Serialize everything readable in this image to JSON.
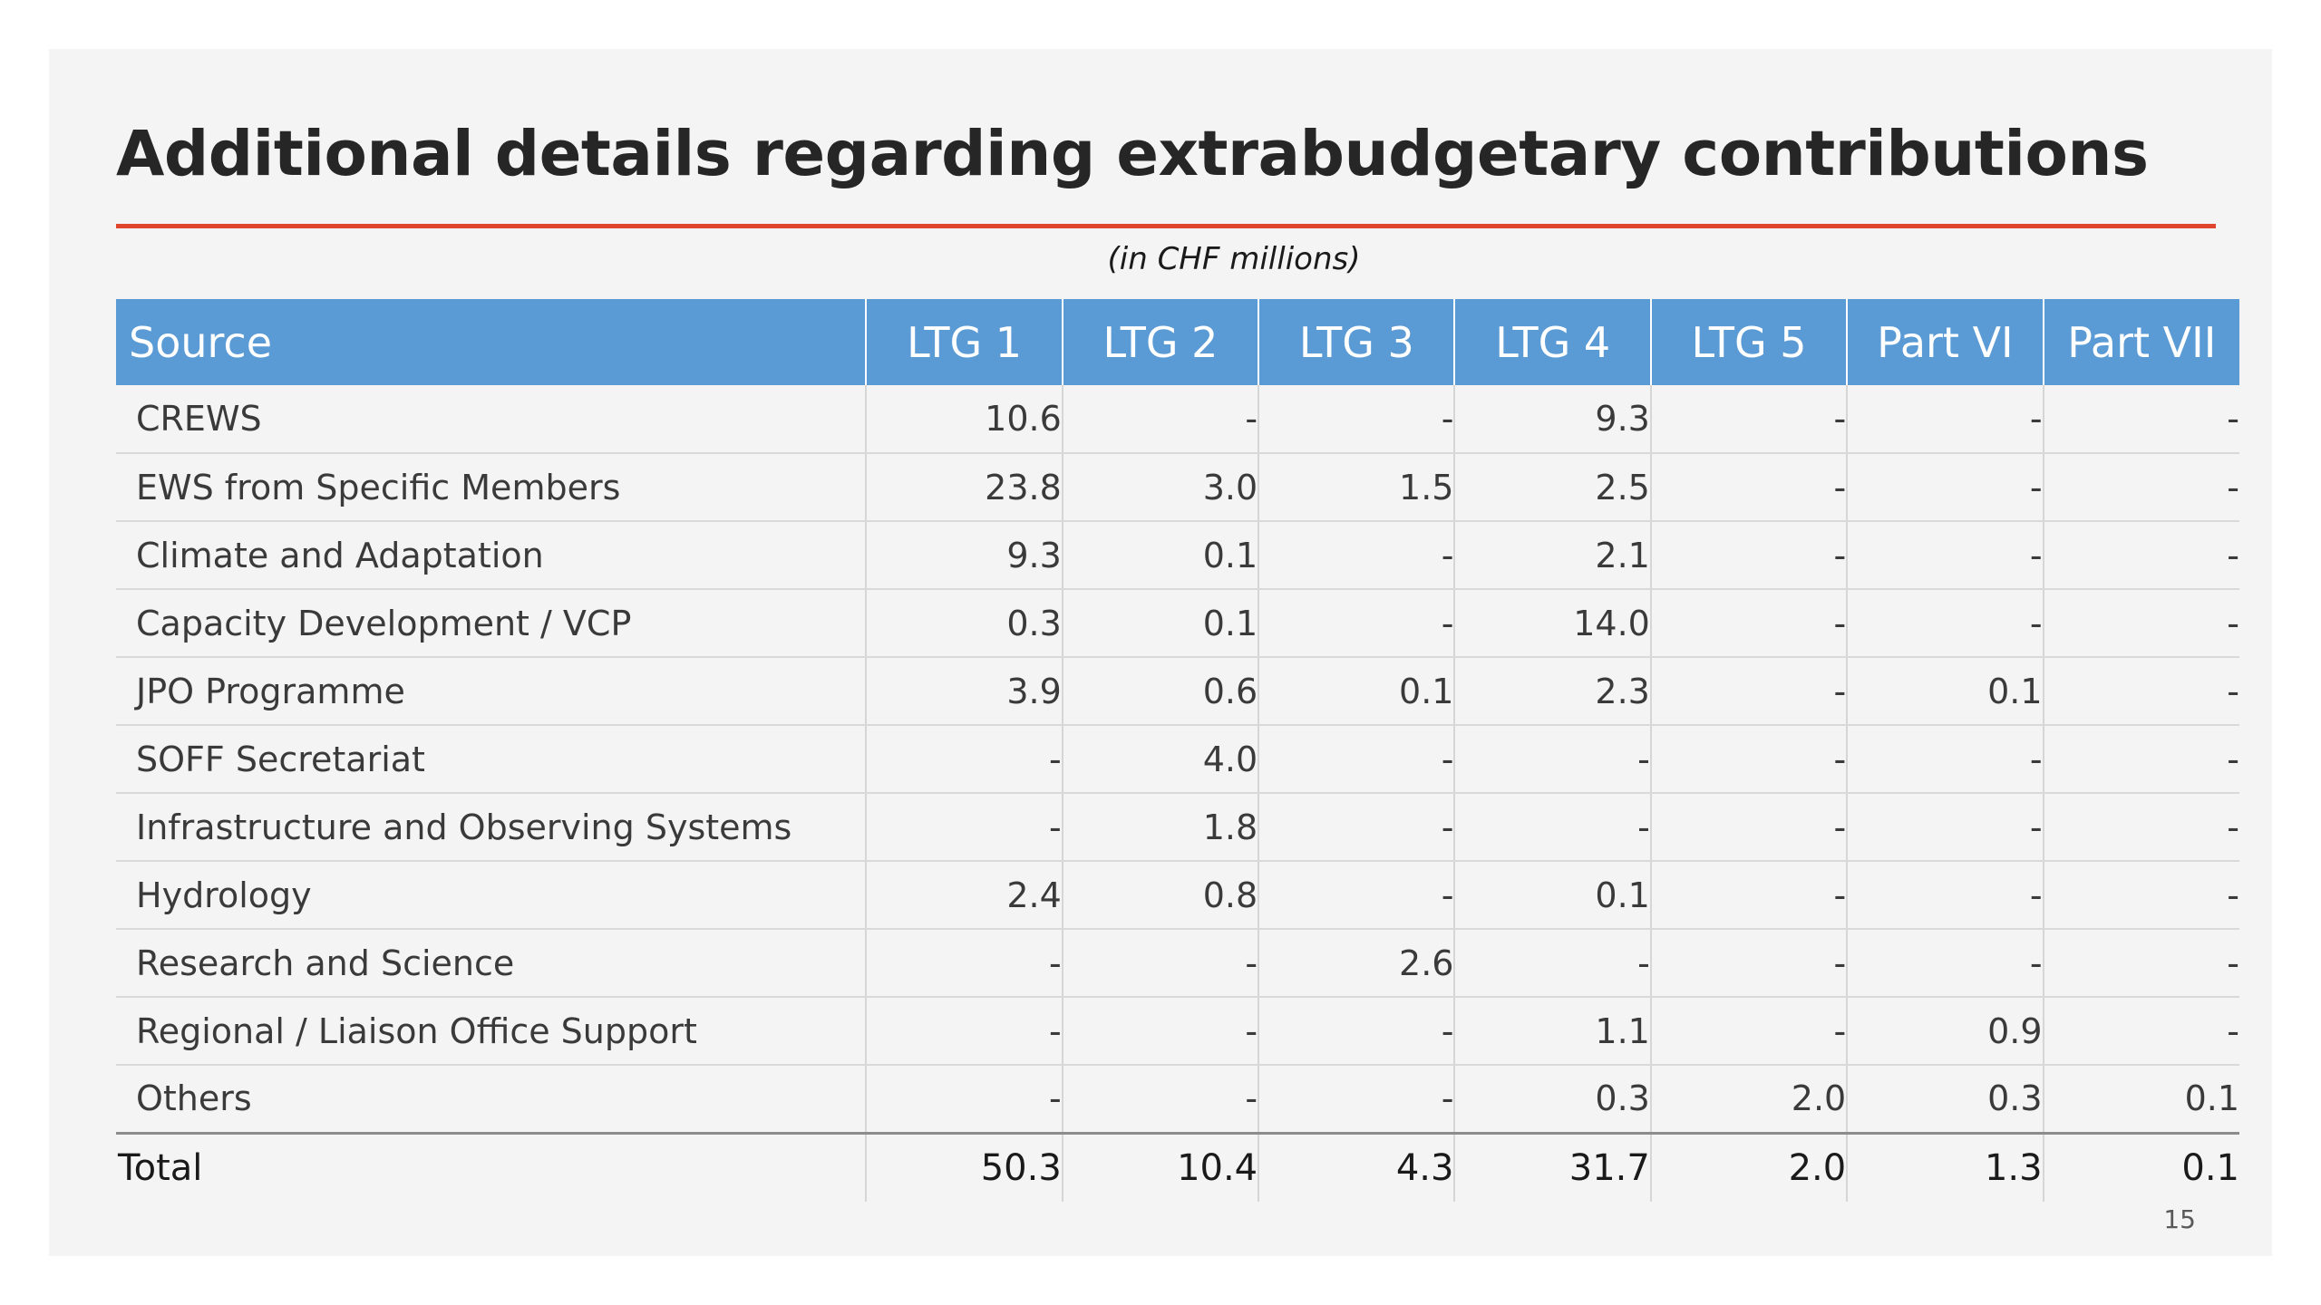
{
  "title": "Additional details regarding extrabudgetary contributions",
  "units_note": "(in CHF millions)",
  "colors": {
    "header_bg": "#5b9bd5",
    "title_rule": "#e0452e",
    "slide_bg": "#f4f4f4"
  },
  "table": {
    "headers": [
      "Source",
      "LTG 1",
      "LTG 2",
      "LTG 3",
      "LTG 4",
      "LTG 5",
      "Part VI",
      "Part VII"
    ],
    "rows": [
      [
        "CREWS",
        "10.6",
        "-",
        "-",
        "9.3",
        "-",
        "-",
        "-"
      ],
      [
        "EWS from Specific Members",
        "23.8",
        "3.0",
        "1.5",
        "2.5",
        "-",
        "-",
        "-"
      ],
      [
        "Climate and Adaptation",
        "9.3",
        "0.1",
        "-",
        "2.1",
        "-",
        "-",
        "-"
      ],
      [
        "Capacity Development / VCP",
        "0.3",
        "0.1",
        "-",
        "14.0",
        "-",
        "-",
        "-"
      ],
      [
        "JPO Programme",
        "3.9",
        "0.6",
        "0.1",
        "2.3",
        "-",
        "0.1",
        "-"
      ],
      [
        "SOFF Secretariat",
        "-",
        "4.0",
        "-",
        "-",
        "-",
        "-",
        "-"
      ],
      [
        "Infrastructure and Observing Systems",
        "-",
        "1.8",
        "-",
        "-",
        "-",
        "-",
        "-"
      ],
      [
        "Hydrology",
        "2.4",
        "0.8",
        "-",
        "0.1",
        "-",
        "-",
        "-"
      ],
      [
        "Research and Science",
        "-",
        "-",
        "2.6",
        "-",
        "-",
        "-",
        "-"
      ],
      [
        "Regional / Liaison Office Support",
        "-",
        "-",
        "-",
        "1.1",
        "-",
        "0.9",
        "-"
      ],
      [
        "Others",
        "-",
        "-",
        "-",
        "0.3",
        "2.0",
        "0.3",
        "0.1"
      ]
    ],
    "total": [
      "Total",
      "50.3",
      "10.4",
      "4.3",
      "31.7",
      "2.0",
      "1.3",
      "0.1"
    ]
  },
  "page_number": "15"
}
